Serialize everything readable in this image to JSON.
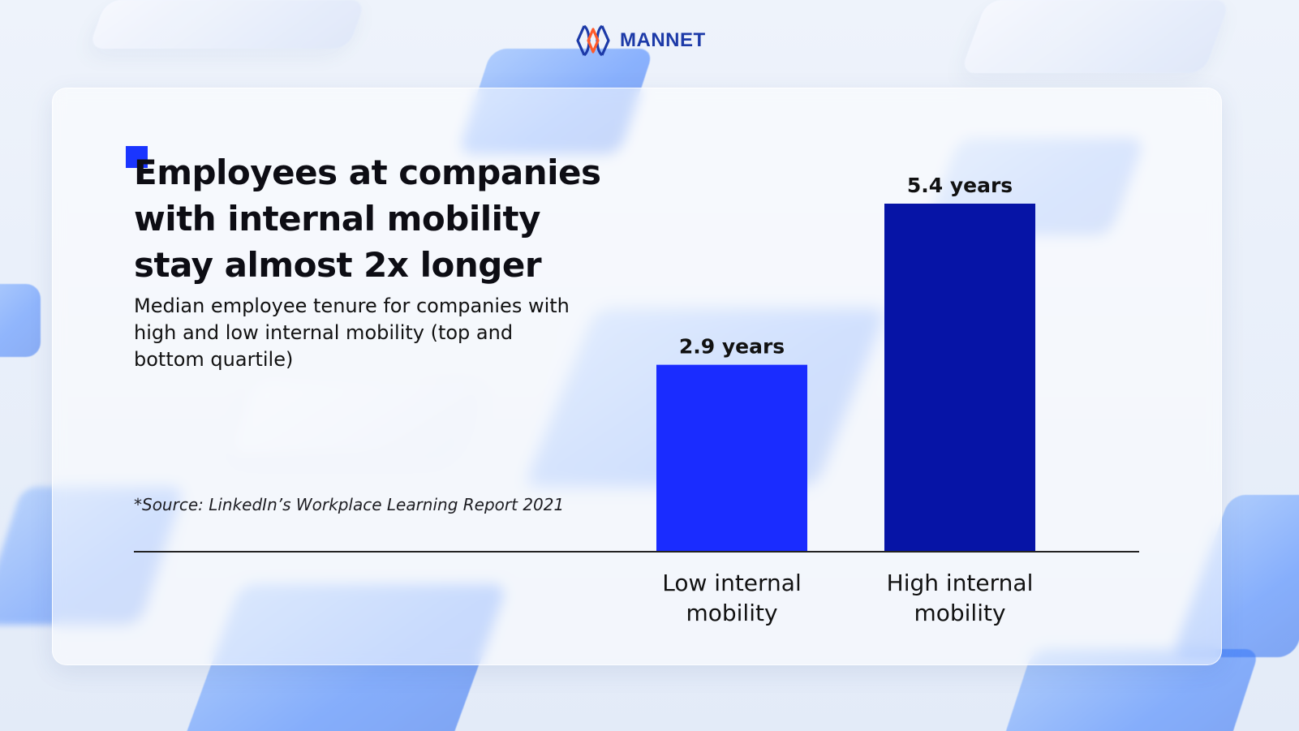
{
  "brand": {
    "name": "MANNET",
    "colors": {
      "primary": "#1d3aa8",
      "accent": "#ff5a2a"
    }
  },
  "heading": {
    "title_lines": [
      "Employees at companies",
      "with internal mobility",
      "stay almost 2x longer"
    ],
    "subtitle": "Median employee tenure for companies with high and low internal mobility (top and bottom quartile)",
    "source": "*Source: LinkedIn’s Workplace Learning Report 2021"
  },
  "colors": {
    "bar_low": "#1a2cff",
    "bar_high": "#0614a6",
    "axis": "#222222",
    "title": "#0d0d14"
  },
  "chart_data": {
    "type": "bar",
    "title": "Employees at companies with internal mobility stay almost 2x longer",
    "categories": [
      "Low internal mobility",
      "High internal mobility"
    ],
    "category_lines": [
      [
        "Low internal",
        "mobility"
      ],
      [
        "High internal",
        "mobility"
      ]
    ],
    "values": [
      2.9,
      5.4
    ],
    "value_labels": [
      "2.9 years",
      "5.4 years"
    ],
    "unit": "years",
    "xlabel": "",
    "ylabel": "",
    "ylim": [
      0,
      5.4
    ],
    "grid": false,
    "legend": "none"
  }
}
